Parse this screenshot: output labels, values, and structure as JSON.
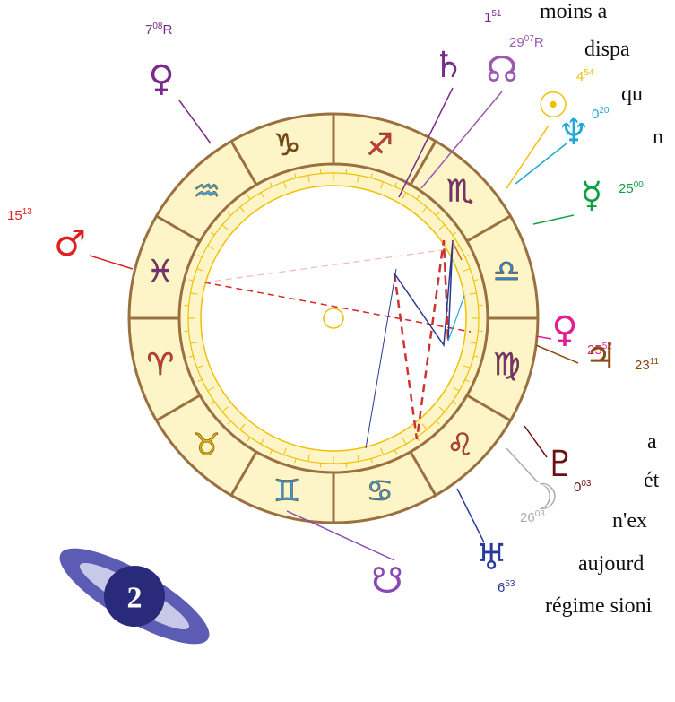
{
  "zodiac": [
    "♐",
    "♏",
    "♎",
    "♍",
    "♌",
    "♋",
    "♊",
    "♉",
    "♈",
    "♓",
    "♒",
    "♑"
  ],
  "planets": [
    {
      "glyph": "♀",
      "degree": "7",
      "minutes": "08",
      "retro": "R"
    },
    {
      "glyph": "♄",
      "degree": "1",
      "minutes": "51"
    },
    {
      "glyph": "☊",
      "degree": "29",
      "minutes": "07",
      "retro": "R"
    },
    {
      "glyph": "☉",
      "degree": "4",
      "minutes": "54"
    },
    {
      "glyph": "♆",
      "degree": "0",
      "minutes": "20"
    },
    {
      "glyph": "☿",
      "degree": "25",
      "minutes": "00"
    },
    {
      "glyph": "♂",
      "degree": "15",
      "minutes": "13"
    },
    {
      "glyph": "♀",
      "degree": "25",
      "minutes": "52"
    },
    {
      "glyph": "♃",
      "degree": "23",
      "minutes": "11"
    },
    {
      "glyph": "♇",
      "degree": "0",
      "minutes": "03"
    },
    {
      "glyph": "☽",
      "degree": "26",
      "minutes": "03"
    },
    {
      "glyph": "♅",
      "degree": "6",
      "minutes": "53"
    },
    {
      "glyph": "☋"
    }
  ],
  "text_fragments": [
    "moins a",
    "dispa",
    "qu",
    "n",
    "a",
    "ét",
    "n'ex",
    "aujourd",
    "régime sioni"
  ],
  "badge": "2"
}
